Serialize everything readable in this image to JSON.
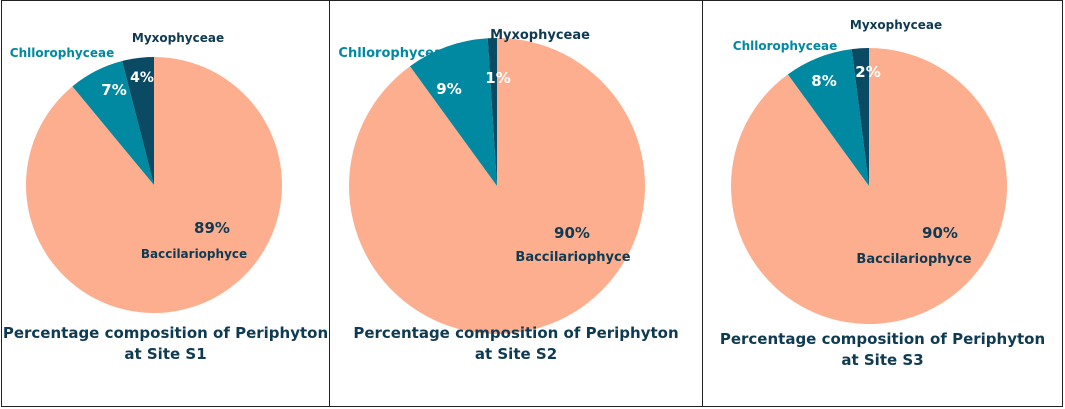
{
  "colors": {
    "baccilariophyce": "#fdae8e",
    "chllorophyceae": "#0089a0",
    "myxophyceae": "#0a4a63",
    "caption": "#0e3a52",
    "pct_white": "#ffffff",
    "pct_dark": "#0e3a52"
  },
  "chart_data": [
    {
      "type": "pie",
      "title_line1": "Percentage composition of Periphyton",
      "title_line2": "at Site S1",
      "slices": [
        {
          "name": "Baccilariophyce",
          "value": 89,
          "label": "89%"
        },
        {
          "name": "Chllorophyceae",
          "value": 7,
          "label": "7%"
        },
        {
          "name": "Myxophyceae",
          "value": 4,
          "label": "4%"
        }
      ]
    },
    {
      "type": "pie",
      "title_line1": "Percentage composition of Periphyton",
      "title_line2": "at Site S2",
      "slices": [
        {
          "name": "Baccilariophyce",
          "value": 90,
          "label": "90%"
        },
        {
          "name": "Chllorophyceae",
          "value": 9,
          "label": "9%"
        },
        {
          "name": "Myxophyceae",
          "value": 1,
          "label": "1%"
        }
      ]
    },
    {
      "type": "pie",
      "title_line1": "Percentage composition of Periphyton",
      "title_line2": "at Site S3",
      "slices": [
        {
          "name": "Baccilariophyce",
          "value": 90,
          "label": "90%"
        },
        {
          "name": "Chllorophyceae",
          "value": 8,
          "label": "8%"
        },
        {
          "name": "Myxophyceae",
          "value": 2,
          "label": "2%"
        }
      ]
    }
  ]
}
